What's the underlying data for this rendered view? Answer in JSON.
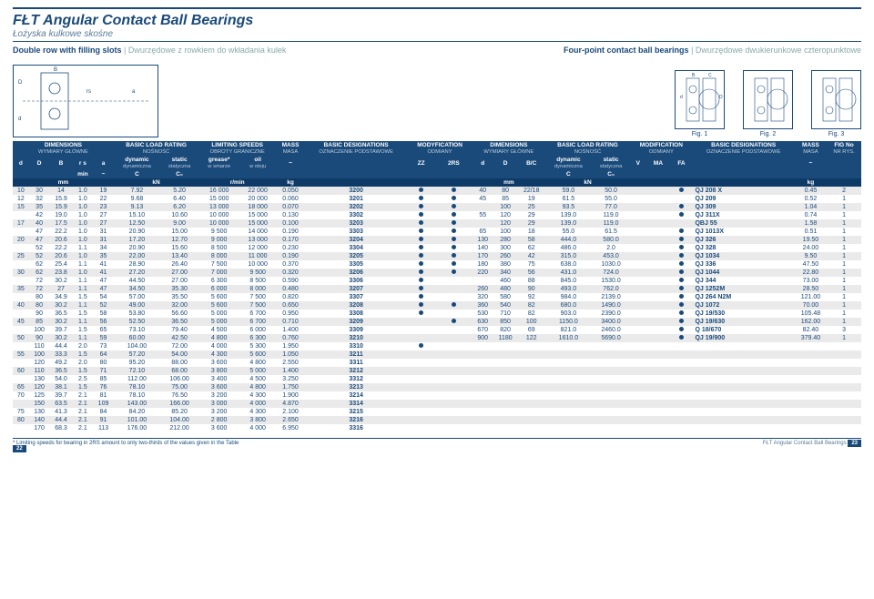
{
  "header": {
    "title": "FŁT Angular Contact Ball Bearings",
    "subtitle": "Łożyska kulkowe skośne",
    "left_desc": "Double row with filling slots",
    "left_desc_grey": "Dwurzędowe z rowkiem do wkładania kulek",
    "right_desc": "Four-point contact ball bearings",
    "right_desc_grey": "Dwurzędowe dwukierunkowe czteropunktowe"
  },
  "figs": {
    "f1": "Fig. 1",
    "f2": "Fig. 2",
    "f3": "Fig. 3"
  },
  "thead": {
    "dimensions": "DIMENSIONS",
    "dimensions_sub": "WYMIARY GŁÓWNE",
    "basic_load": "BASIC LOAD RATING",
    "basic_load_sub": "NOŚNOŚĆ",
    "limiting": "LIMITING SPEEDS",
    "limiting_sub": "OBROTY GRANICZNE",
    "mass": "MASS",
    "mass_sub": "MASA",
    "designations": "BASIC DESIGNATIONS",
    "designations_sub": "OZNACZENIE PODSTAWOWE",
    "modification": "MODYFICATION",
    "modification_sub": "ODMIANY",
    "mod2": "MODIFICATION",
    "mod2_sub": "ODMIANY",
    "fig": "FIG No",
    "fig_sub": "NR RYS.",
    "d": "d",
    "D": "D",
    "B": "B",
    "rs": "r s",
    "a": "a",
    "dynamic": "dynamic",
    "dynamic_sub": "dynamiczna",
    "static": "static",
    "static_sub": "statyczna",
    "grease": "grease*",
    "grease_sub": "w smarze",
    "oil": "oil",
    "oil_sub": "w oleju",
    "tilde": "~",
    "ZZ": "ZZ",
    "RS": "2RS",
    "BC": "B/C",
    "V": "V",
    "MA": "MA",
    "FA": "FA",
    "C": "C",
    "C0": "C₀",
    "min": "min",
    "mm": "mm",
    "kN": "kN",
    "rmin": "r/min",
    "kg": "kg"
  },
  "rows": [
    {
      "l": [
        "10",
        "30",
        "14",
        "1.0",
        "19",
        "7.92",
        "5.20",
        "16 000",
        "22 000",
        "0.050",
        "3200",
        "●",
        "●"
      ],
      "r": [
        "40",
        "80",
        "22/18",
        "59.0",
        "50.0",
        "",
        "",
        "●",
        "QJ 208 X",
        "0.45",
        "2"
      ]
    },
    {
      "l": [
        "12",
        "32",
        "15.9",
        "1.0",
        "22",
        "9.68",
        "6.40",
        "15 000",
        "20 000",
        "0.060",
        "3201",
        "●",
        "●"
      ],
      "r": [
        "45",
        "85",
        "19",
        "61.5",
        "55.0",
        "",
        "",
        "",
        "QJ 209",
        "0.52",
        "1"
      ]
    },
    {
      "l": [
        "15",
        "35",
        "15.9",
        "1.0",
        "23",
        "9.13",
        "6.20",
        "13 000",
        "18 000",
        "0.070",
        "3202",
        "●",
        "●"
      ],
      "r": [
        "",
        "100",
        "25",
        "93.5",
        "77.0",
        "",
        "",
        "●",
        "QJ 309",
        "1.04",
        "1"
      ]
    },
    {
      "l": [
        "",
        "42",
        "19.0",
        "1.0",
        "27",
        "15.10",
        "10.60",
        "10 000",
        "15 000",
        "0.130",
        "3302",
        "●",
        "●"
      ],
      "r": [
        "55",
        "120",
        "29",
        "139.0",
        "119.0",
        "",
        "",
        "●",
        "QJ 311X",
        "0.74",
        "1"
      ]
    },
    {
      "l": [
        "17",
        "40",
        "17.5",
        "1.0",
        "27",
        "12.50",
        "9.00",
        "10 000",
        "15 000",
        "0.100",
        "3203",
        "●",
        "●"
      ],
      "r": [
        "",
        "120",
        "29",
        "139.0",
        "119.0",
        "",
        "",
        "",
        "QBJ 55",
        "1.58",
        "1"
      ]
    },
    {
      "l": [
        "",
        "47",
        "22.2",
        "1.0",
        "31",
        "20.90",
        "15.00",
        "9 500",
        "14 000",
        "0.190",
        "3303",
        "●",
        "●"
      ],
      "r": [
        "65",
        "100",
        "18",
        "55.0",
        "61.5",
        "",
        "",
        "●",
        "QJ 1013X",
        "0.51",
        "1"
      ]
    },
    {
      "l": [
        "20",
        "47",
        "20.6",
        "1.0",
        "31",
        "17.20",
        "12.70",
        "9 000",
        "13 000",
        "0.170",
        "3204",
        "●",
        "●"
      ],
      "r": [
        "130",
        "280",
        "58",
        "444.0",
        "580.0",
        "",
        "",
        "●",
        "QJ 326",
        "19.50",
        "1"
      ]
    },
    {
      "l": [
        "",
        "52",
        "22.2",
        "1.1",
        "34",
        "20.90",
        "15.60",
        "8 500",
        "12 000",
        "0.230",
        "3304",
        "●",
        "●"
      ],
      "r": [
        "140",
        "300",
        "62",
        "486.0",
        "2.0",
        "",
        "",
        "●",
        "QJ 328",
        "24.00",
        "1"
      ]
    },
    {
      "l": [
        "25",
        "52",
        "20.6",
        "1.0",
        "35",
        "22.00",
        "13.40",
        "8 000",
        "11 000",
        "0.190",
        "3205",
        "●",
        "●"
      ],
      "r": [
        "170",
        "260",
        "42",
        "315.0",
        "453.0",
        "",
        "",
        "●",
        "QJ 1034",
        "9.50",
        "1"
      ]
    },
    {
      "l": [
        "",
        "62",
        "25.4",
        "1.1",
        "41",
        "28.90",
        "26.40",
        "7 500",
        "10 000",
        "0.370",
        "3305",
        "●",
        "●"
      ],
      "r": [
        "180",
        "380",
        "75",
        "638.0",
        "1030.0",
        "",
        "",
        "●",
        "QJ 336",
        "47.50",
        "1"
      ]
    },
    {
      "l": [
        "30",
        "62",
        "23.8",
        "1.0",
        "41",
        "27.20",
        "27.00",
        "7 000",
        "9 500",
        "0.320",
        "3206",
        "●",
        "●"
      ],
      "r": [
        "220",
        "340",
        "56",
        "431.0",
        "724.0",
        "",
        "",
        "●",
        "QJ 1044",
        "22.80",
        "1"
      ]
    },
    {
      "l": [
        "",
        "72",
        "30.2",
        "1.1",
        "47",
        "44.50",
        "27.00",
        "6 300",
        "8 500",
        "0.590",
        "3306",
        "●",
        ""
      ],
      "r": [
        "",
        "460",
        "88",
        "845.0",
        "1530.0",
        "",
        "",
        "●",
        "QJ 344",
        "73.00",
        "1"
      ]
    },
    {
      "l": [
        "35",
        "72",
        "27",
        "1.1",
        "47",
        "34.50",
        "35.30",
        "6 000",
        "8 000",
        "0.480",
        "3207",
        "●",
        ""
      ],
      "r": [
        "260",
        "480",
        "90",
        "493.0",
        "762.0",
        "",
        "",
        "●",
        "QJ 1252M",
        "28.50",
        "1"
      ]
    },
    {
      "l": [
        "",
        "80",
        "34.9",
        "1.5",
        "54",
        "57.00",
        "35.50",
        "5 600",
        "7 500",
        "0.820",
        "3307",
        "●",
        ""
      ],
      "r": [
        "320",
        "580",
        "92",
        "984.0",
        "2139.0",
        "",
        "",
        "●",
        "QJ 264 N2M",
        "121.00",
        "1"
      ]
    },
    {
      "l": [
        "40",
        "80",
        "30.2",
        "1.1",
        "52",
        "49.00",
        "32.00",
        "5 600",
        "7 500",
        "0.650",
        "3208",
        "●",
        "●"
      ],
      "r": [
        "360",
        "540",
        "82",
        "680.0",
        "1490.0",
        "",
        "",
        "●",
        "QJ 1072",
        "70.00",
        "1"
      ]
    },
    {
      "l": [
        "",
        "90",
        "36.5",
        "1.5",
        "58",
        "53.80",
        "56.60",
        "5 000",
        "6 700",
        "0.950",
        "3308",
        "●",
        ""
      ],
      "r": [
        "530",
        "710",
        "82",
        "903.0",
        "2390.0",
        "",
        "",
        "●",
        "QJ 19/530",
        "105.48",
        "1"
      ]
    },
    {
      "l": [
        "45",
        "85",
        "30.2",
        "1.1",
        "56",
        "52.50",
        "36.50",
        "5 000",
        "6 700",
        "0.710",
        "3209",
        "",
        "●"
      ],
      "r": [
        "630",
        "850",
        "100",
        "1150.0",
        "3400.0",
        "",
        "",
        "●",
        "QJ 19/630",
        "162.00",
        "1"
      ]
    },
    {
      "l": [
        "",
        "100",
        "39.7",
        "1.5",
        "65",
        "73.10",
        "79.40",
        "4 500",
        "6 000",
        "1.400",
        "3309",
        "",
        ""
      ],
      "r": [
        "670",
        "820",
        "69",
        "821.0",
        "2460.0",
        "",
        "",
        "●",
        "Q 18/670",
        "82.40",
        "3"
      ]
    },
    {
      "l": [
        "50",
        "90",
        "30.2",
        "1.1",
        "59",
        "60.00",
        "42.50",
        "4 800",
        "6 300",
        "0.760",
        "3210",
        "",
        ""
      ],
      "r": [
        "900",
        "1180",
        "122",
        "1610.0",
        "5690.0",
        "",
        "",
        "●",
        "QJ 19/900",
        "379.40",
        "1"
      ]
    },
    {
      "l": [
        "",
        "110",
        "44.4",
        "2.0",
        "73",
        "104.00",
        "72.00",
        "4 000",
        "5 300",
        "1.950",
        "3310",
        "●",
        ""
      ]
    },
    {
      "l": [
        "55",
        "100",
        "33.3",
        "1.5",
        "64",
        "57.20",
        "54.00",
        "4 300",
        "5 600",
        "1.050",
        "3211",
        "",
        ""
      ]
    },
    {
      "l": [
        "",
        "120",
        "49.2",
        "2.0",
        "80",
        "95.20",
        "88.00",
        "3 600",
        "4 800",
        "2.550",
        "3311",
        "",
        ""
      ]
    },
    {
      "l": [
        "60",
        "110",
        "36.5",
        "1.5",
        "71",
        "72.10",
        "68.00",
        "3 800",
        "5 000",
        "1.400",
        "3212",
        "",
        ""
      ]
    },
    {
      "l": [
        "",
        "130",
        "54.0",
        "2.5",
        "85",
        "112.00",
        "106.00",
        "3 400",
        "4 500",
        "3.250",
        "3312",
        "",
        ""
      ]
    },
    {
      "l": [
        "65",
        "120",
        "38.1",
        "1.5",
        "76",
        "78.10",
        "75.00",
        "3 600",
        "4 800",
        "1.750",
        "3213",
        "",
        ""
      ]
    },
    {
      "l": [
        "70",
        "125",
        "39.7",
        "2.1",
        "81",
        "78.10",
        "76.50",
        "3 200",
        "4 300",
        "1.900",
        "3214",
        "",
        ""
      ]
    },
    {
      "l": [
        "",
        "150",
        "63.5",
        "2.1",
        "109",
        "143.00",
        "166.00",
        "3 000",
        "4 000",
        "4.870",
        "3314",
        "",
        ""
      ]
    },
    {
      "l": [
        "75",
        "130",
        "41.3",
        "2.1",
        "84",
        "84.20",
        "85.20",
        "3 200",
        "4 300",
        "2.100",
        "3215",
        "",
        ""
      ]
    },
    {
      "l": [
        "80",
        "140",
        "44.4",
        "2.1",
        "91",
        "101.00",
        "104.00",
        "2 800",
        "3 800",
        "2.650",
        "3216",
        "",
        ""
      ]
    },
    {
      "l": [
        "",
        "170",
        "68.3",
        "2.1",
        "113",
        "176.00",
        "212.00",
        "3 600",
        "4 000",
        "6.950",
        "3316",
        "",
        ""
      ]
    }
  ],
  "footer": {
    "note": "* Limiting speeds for bearing in 2RS amount to only two-thirds of the values given in the Table",
    "pg_left": "22",
    "pg_right": "23",
    "brand": "FŁT Angular Contact Ball Bearings"
  }
}
